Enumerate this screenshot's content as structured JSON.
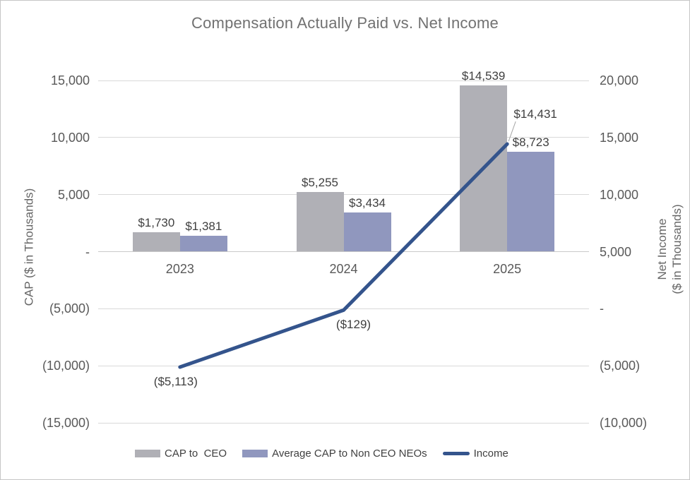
{
  "chart_data": {
    "type": "combo-bar-line",
    "title": "Compensation Actually Paid vs. Net Income",
    "categories": [
      "2023",
      "2024",
      "2025"
    ],
    "series": [
      {
        "name": "CAP to  CEO",
        "type": "bar",
        "axis": "left",
        "color": "#b0b0b6",
        "values": [
          1730,
          5255,
          14539
        ],
        "labels": [
          "$1,730",
          "$5,255",
          "$14,539"
        ]
      },
      {
        "name": "Average CAP to Non CEO NEOs",
        "type": "bar",
        "axis": "left",
        "color": "#9097be",
        "values": [
          1381,
          3434,
          8723
        ],
        "labels": [
          "$1,381",
          "$3,434",
          "$8,723"
        ]
      },
      {
        "name": "Income",
        "type": "line",
        "axis": "right",
        "color": "#34548c",
        "values": [
          -5113,
          -129,
          14431
        ],
        "labels": [
          "($5,113)",
          "($129)",
          "$14,431"
        ]
      }
    ],
    "left_axis": {
      "label": "CAP ($ in Thousands)",
      "min": -15000,
      "max": 15000,
      "step": 5000,
      "ticks": [
        "15,000",
        "10,000",
        "5,000",
        "-",
        "(5,000)",
        "(10,000)",
        "(15,000)"
      ]
    },
    "right_axis": {
      "label_line1": "Net Income",
      "label_line2": "($ in Thousands)",
      "min": -10000,
      "max": 20000,
      "step": 5000,
      "ticks": [
        "20,000",
        "15,000",
        "10,000",
        "5,000",
        "-",
        "(5,000)",
        "(10,000)"
      ]
    },
    "grid": true,
    "legend_position": "bottom",
    "colors": {
      "gridline": "#d9d9d9",
      "tick_text": "#595959",
      "data_label_text": "#3f3f3f",
      "title_text": "#717171",
      "leader_line": "#a6a6a6"
    }
  }
}
